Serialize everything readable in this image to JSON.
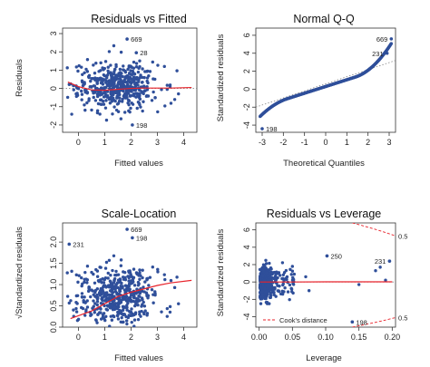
{
  "chart_data": [
    {
      "type": "scatter",
      "title": "Residuals vs Fitted",
      "xlabel": "Fitted values",
      "ylabel": "Residuals",
      "xlim": [
        -0.6,
        4.5
      ],
      "ylim": [
        -2.4,
        3.3
      ],
      "xticks": [
        0,
        1,
        2,
        3,
        4
      ],
      "yticks": [
        -2,
        -1,
        0,
        1,
        2,
        3
      ],
      "ref_line": {
        "type": "horizontal",
        "y": 0,
        "style": "dotted"
      },
      "smooth": {
        "x": [
          -0.4,
          0,
          0.5,
          1.0,
          1.5,
          2.0,
          2.5,
          3.0,
          3.5,
          4.3
        ],
        "y": [
          0.35,
          0.1,
          -0.08,
          -0.1,
          -0.05,
          0.0,
          0.02,
          0.02,
          0.02,
          0.05
        ]
      },
      "points": [],
      "annotations": [
        {
          "label": "669",
          "x": 1.85,
          "y": 2.7
        },
        {
          "label": "28",
          "x": 2.2,
          "y": 1.95
        },
        {
          "label": "198",
          "x": 2.05,
          "y": -2.0
        }
      ]
    },
    {
      "type": "scatter",
      "title": "Normal Q-Q",
      "xlabel": "Theoretical Quantiles",
      "ylabel": "Standardized residuals",
      "xlim": [
        -3.3,
        3.3
      ],
      "ylim": [
        -4.8,
        6.8
      ],
      "xticks": [
        -3,
        -2,
        -1,
        0,
        1,
        2,
        3
      ],
      "yticks": [
        -4,
        -2,
        0,
        2,
        4,
        6
      ],
      "ref_line": {
        "type": "diagonal",
        "x": [
          -3.3,
          3.3
        ],
        "y": [
          -2.0,
          3.2
        ],
        "style": "dotted"
      },
      "points": [],
      "annotations": [
        {
          "label": "669",
          "x": 3.1,
          "y": 5.6
        },
        {
          "label": "231",
          "x": 2.9,
          "y": 4.0
        },
        {
          "label": "198",
          "x": -3.0,
          "y": -4.4
        }
      ]
    },
    {
      "type": "scatter",
      "title": "Scale-Location",
      "xlabel": "Fitted values",
      "ylabel": "√Standardized residuals",
      "xlim": [
        -0.6,
        4.5
      ],
      "ylim": [
        0,
        2.45
      ],
      "xticks": [
        0,
        1,
        2,
        3,
        4
      ],
      "yticks": [
        0.0,
        0.5,
        1.0,
        1.5,
        2.0
      ],
      "smooth": {
        "x": [
          -0.3,
          0.5,
          1.0,
          1.5,
          2.0,
          2.5,
          3.0,
          3.5,
          4.3
        ],
        "y": [
          0.2,
          0.38,
          0.55,
          0.72,
          0.82,
          0.9,
          0.98,
          1.04,
          1.1
        ]
      },
      "points": [],
      "annotations": [
        {
          "label": "669",
          "x": 1.85,
          "y": 2.3
        },
        {
          "label": "198",
          "x": 2.05,
          "y": 2.1
        },
        {
          "label": "231",
          "x": -0.35,
          "y": 1.95
        }
      ]
    },
    {
      "type": "scatter",
      "title": "Residuals vs Leverage",
      "xlabel": "Leverage",
      "ylabel": "Standardized residuals",
      "xlim": [
        -0.005,
        0.205
      ],
      "ylim": [
        -5.2,
        6.8
      ],
      "xticks": [
        0.0,
        0.05,
        0.1,
        0.15,
        0.2
      ],
      "xtick_labels": [
        "0.00",
        "0.05",
        "0.10",
        "0.15",
        "0.20"
      ],
      "yticks": [
        -4,
        -2,
        0,
        2,
        4,
        6
      ],
      "ref_line": {
        "type": "horizontal",
        "y": 0,
        "style": "dotted"
      },
      "smooth": {
        "x": [
          0.001,
          0.05,
          0.1,
          0.15,
          0.2
        ],
        "y": [
          0.0,
          0.0,
          0.02,
          0.02,
          0.02
        ]
      },
      "cooks_distance": {
        "legend": "Cook's distance",
        "contour_labels": [
          "0.5",
          "0.5"
        ]
      },
      "points": [],
      "annotations": [
        {
          "label": "250",
          "x": 0.102,
          "y": 3.0
        },
        {
          "label": "231",
          "x": 0.196,
          "y": 2.4
        },
        {
          "label": "198",
          "x": 0.14,
          "y": -4.6
        }
      ]
    }
  ],
  "colors": {
    "points": "#2f4f9a",
    "smooth": "#e8222a",
    "cook": "#e8222a",
    "refline": "#888888"
  }
}
